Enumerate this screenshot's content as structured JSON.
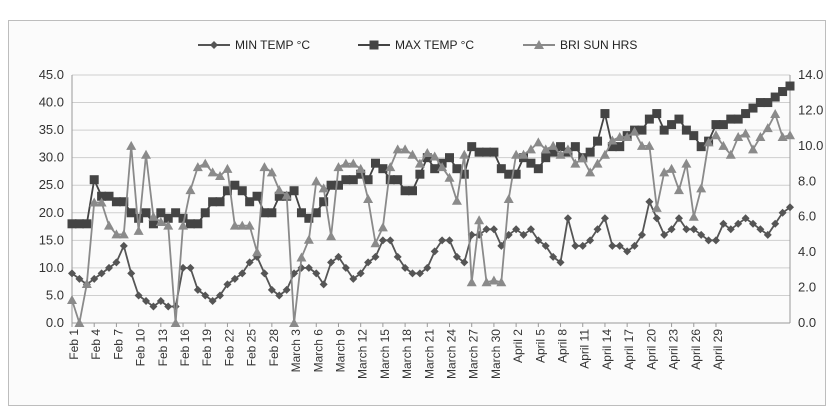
{
  "chart_data": {
    "type": "line",
    "title": "",
    "xlabel": "",
    "ylabel_left": "",
    "ylabel_right": "",
    "ylim_left": [
      0,
      45
    ],
    "ylim_right": [
      0,
      14
    ],
    "yticks_left": [
      "0.0",
      "5.0",
      "10.0",
      "15.0",
      "20.0",
      "25.0",
      "30.0",
      "35.0",
      "40.0",
      "45.0"
    ],
    "yticks_right": [
      "0.0",
      "2.0",
      "4.0",
      "6.0",
      "8.0",
      "10.0",
      "12.0",
      "14.0"
    ],
    "x_tick_labels": [
      "Feb 1",
      "Feb 4",
      "Feb 7",
      "Feb 10",
      "Feb 13",
      "Feb 16",
      "Feb 19",
      "Feb 22",
      "Feb 25",
      "Feb 28",
      "March 3",
      "March 6",
      "March 9",
      "March 12",
      "March 15",
      "March 18",
      "March 21",
      "March 24",
      "March 27",
      "March 30",
      "April 2",
      "April 5",
      "April 8",
      "April 11",
      "April 14",
      "April 17",
      "April 20",
      "April 23",
      "April 26",
      "April 29"
    ],
    "grid": true,
    "legend_position": "top-center",
    "series": [
      {
        "name": "MIN TEMP °C",
        "axis": "left",
        "marker": "diamond",
        "color": "#555555",
        "values": [
          9,
          8,
          7,
          8,
          9,
          10,
          11,
          14,
          9,
          5,
          4,
          3,
          4,
          3,
          3,
          10,
          10,
          6,
          5,
          4,
          5,
          7,
          8,
          9,
          11,
          12,
          9,
          6,
          5,
          6,
          9,
          10,
          10,
          9,
          7,
          11,
          12,
          10,
          8,
          9,
          11,
          12,
          15,
          15,
          12,
          10,
          9,
          9,
          10,
          13,
          15,
          15,
          12,
          11,
          16,
          16,
          17,
          17,
          14,
          16,
          17,
          16,
          17,
          15,
          14,
          12,
          11,
          19,
          14,
          14,
          15,
          17,
          19,
          14,
          14,
          13,
          14,
          16,
          22,
          19,
          16,
          17,
          19,
          17,
          17,
          16,
          15,
          15,
          18,
          17,
          18,
          19,
          18,
          17,
          16,
          18,
          20,
          21
        ],
        "values_count": 98
      },
      {
        "name": "MAX TEMP °C",
        "axis": "left",
        "marker": "square",
        "color": "#444444",
        "values": [
          18,
          18,
          18,
          26,
          23,
          23,
          22,
          22,
          20,
          19,
          20,
          18,
          20,
          19,
          20,
          19,
          18,
          18,
          20,
          22,
          22,
          24,
          25,
          24,
          22,
          23,
          20,
          20,
          23,
          23,
          24,
          20,
          19,
          20,
          22,
          25,
          25,
          26,
          26,
          27,
          26,
          29,
          28,
          26,
          26,
          24,
          24,
          27,
          30,
          28,
          29,
          30,
          28,
          27,
          32,
          31,
          31,
          31,
          28,
          27,
          27,
          30,
          29,
          28,
          30,
          31,
          32,
          31,
          32,
          30,
          31,
          33,
          38,
          32,
          32,
          34,
          35,
          35,
          37,
          38,
          35,
          36,
          37,
          35,
          34,
          32,
          33,
          36,
          36,
          37,
          37,
          38,
          39,
          40,
          40,
          41,
          42,
          43
        ],
        "values_count": 98
      },
      {
        "name": "BRI SUN HRS",
        "axis": "right",
        "marker": "triangle",
        "color": "#8a8a8a",
        "values": [
          1.3,
          0,
          2.2,
          6.8,
          6.8,
          5.5,
          5.0,
          5.0,
          10.0,
          5.2,
          9.5,
          6.0,
          5.7,
          5.5,
          0,
          5.5,
          7.5,
          8.8,
          9.0,
          8.5,
          8.3,
          8.7,
          5.5,
          5.5,
          5.5,
          4.0,
          8.8,
          8.5,
          7.5,
          7.2,
          0,
          3.7,
          4.7,
          8.0,
          7.6,
          4.9,
          8.8,
          9.0,
          9.0,
          8.7,
          7.0,
          4.5,
          5.4,
          8.8,
          9.8,
          9.8,
          9.5,
          9.0,
          9.6,
          9.4,
          8.8,
          8.2,
          6.9,
          9.5,
          2.3,
          5.8,
          2.3,
          2.4,
          2.3,
          7.0,
          9.5,
          9.5,
          9.8,
          10.2,
          9.8,
          10.0,
          9.5,
          9.8,
          9.0,
          9.3,
          8.5,
          9.0,
          9.5,
          10.3,
          10.5,
          10.5,
          10.8,
          10.0,
          10.0,
          6.5,
          8.5,
          8.7,
          7.5,
          9.0,
          6.0,
          7.6,
          10.2,
          10.6,
          10.0,
          9.5,
          10.5,
          10.7,
          9.8,
          10.5,
          11.0,
          11.8,
          10.5,
          10.6
        ],
        "values_count": 98
      }
    ]
  }
}
